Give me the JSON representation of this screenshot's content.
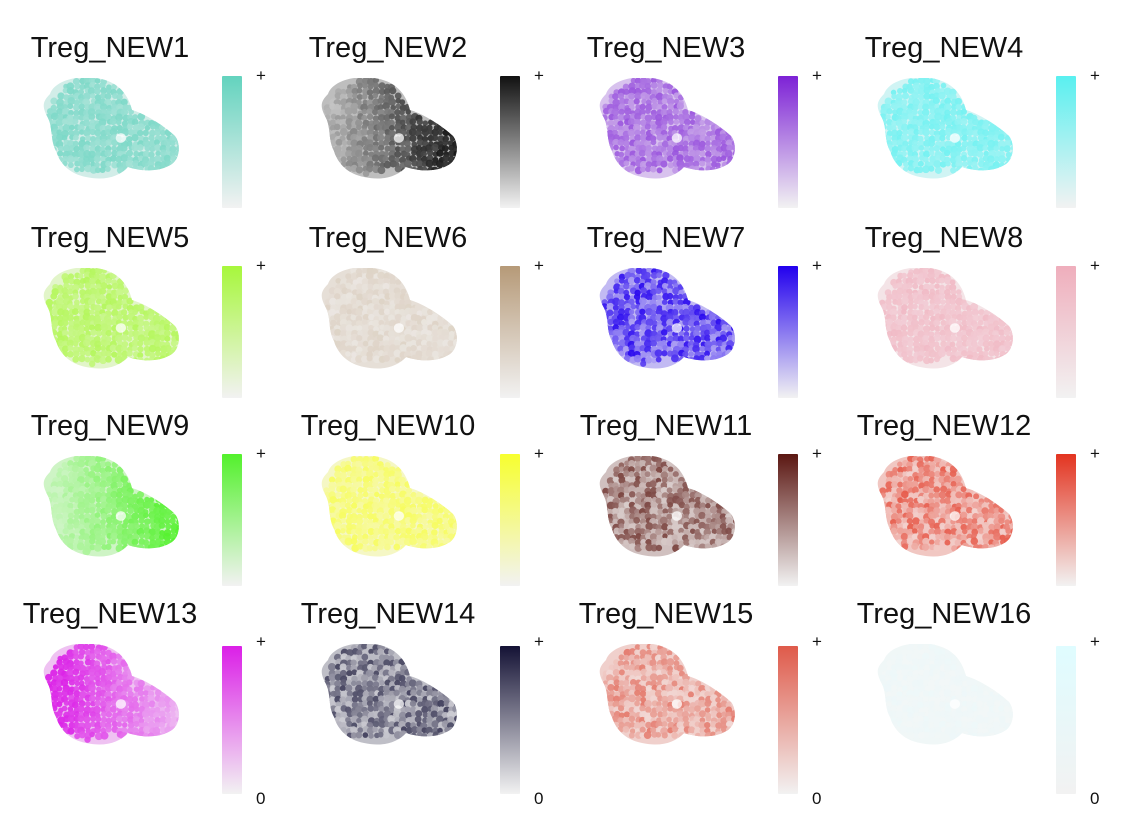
{
  "chart_data": {
    "type": "spatial-feature-grid",
    "layout": {
      "rows": 4,
      "columns": 4
    },
    "scale_labels": {
      "max": "+",
      "min": "0"
    },
    "panels": [
      {
        "title": "Treg_NEW1",
        "color": "#63d3be",
        "pattern": "uniform-high"
      },
      {
        "title": "Treg_NEW2",
        "color": "#111111",
        "pattern": "right-lobe-high"
      },
      {
        "title": "Treg_NEW3",
        "color": "#7d22d6",
        "pattern": "uniform-mid"
      },
      {
        "title": "Treg_NEW4",
        "color": "#59f0f0",
        "pattern": "uniform-high"
      },
      {
        "title": "Treg_NEW5",
        "color": "#a7f73c",
        "pattern": "uniform-high"
      },
      {
        "title": "Treg_NEW6",
        "color": "#b69a78",
        "pattern": "uniform-low"
      },
      {
        "title": "Treg_NEW7",
        "color": "#2200ee",
        "pattern": "high-patchy"
      },
      {
        "title": "Treg_NEW8",
        "color": "#efaebc",
        "pattern": "uniform-high"
      },
      {
        "title": "Treg_NEW9",
        "color": "#53f12c",
        "pattern": "right-lobe-high"
      },
      {
        "title": "Treg_NEW10",
        "color": "#f7ff2f",
        "pattern": "uniform-mid"
      },
      {
        "title": "Treg_NEW11",
        "color": "#5b1712",
        "pattern": "patchy-mid"
      },
      {
        "title": "Treg_NEW12",
        "color": "#e33420",
        "pattern": "patchy-mid"
      },
      {
        "title": "Treg_NEW13",
        "color": "#db1fe7",
        "pattern": "left-lobe-high"
      },
      {
        "title": "Treg_NEW14",
        "color": "#141235",
        "pattern": "patchy-mid"
      },
      {
        "title": "Treg_NEW15",
        "color": "#df5a4a",
        "pattern": "patchy-mid"
      },
      {
        "title": "Treg_NEW16",
        "color": "#dffcff",
        "pattern": "uniform-low"
      }
    ]
  }
}
